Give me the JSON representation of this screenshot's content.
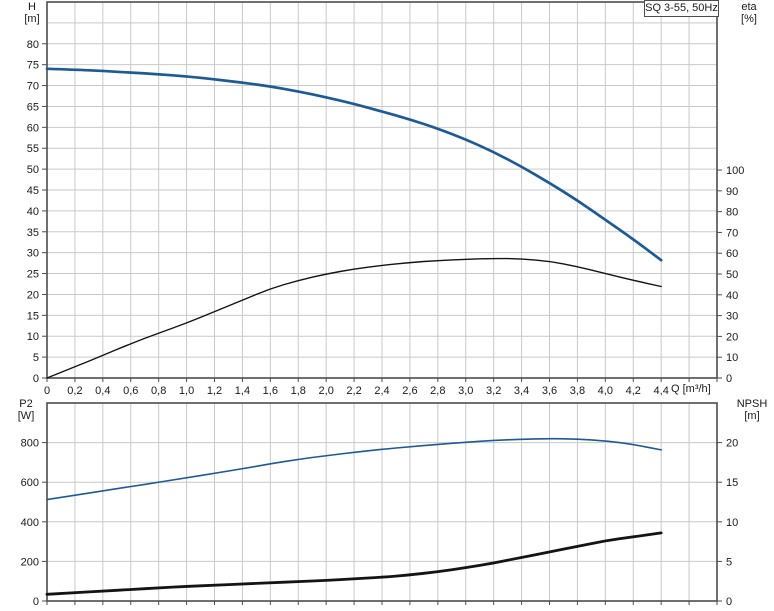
{
  "colors": {
    "blue_curve": "#1e5a96",
    "black_curve": "#141414",
    "grid": "#c9c9c9",
    "frame": "#4d4d4d",
    "text": "#1a1a1a",
    "background": "#ffffff"
  },
  "x_axis": {
    "grid_step": 0.2,
    "tick_values": [
      0,
      0.2,
      0.4,
      0.6,
      0.8,
      1.0,
      1.2,
      1.4,
      1.6,
      1.8,
      2.0,
      2.2,
      2.4,
      2.6,
      2.8,
      3.0,
      3.2,
      3.4,
      3.6,
      3.8,
      4.0,
      4.2,
      4.4
    ],
    "tick_labels": [
      "0",
      "0,2",
      "0,4",
      "0,6",
      "0,8",
      "1,0",
      "1,2",
      "1,4",
      "1,6",
      "1,8",
      "2,0",
      "2,2",
      "2,4",
      "2,6",
      "2,8",
      "3,0",
      "3,2",
      "3,4",
      "3,6",
      "3,8",
      "4,0",
      "4,2",
      "4,4"
    ]
  },
  "chart_data": [
    {
      "type": "line",
      "title": "SQ 3-55, 50Hz",
      "xlabel": "Q [m³/h]",
      "xlim": [
        0,
        4.8
      ],
      "grid": true,
      "left_axis": {
        "label_line1": "H",
        "label_line2": "[m]",
        "ylim": [
          0,
          90
        ],
        "tick_step": 5,
        "ticks": [
          0,
          5,
          10,
          15,
          20,
          25,
          30,
          35,
          40,
          45,
          50,
          55,
          60,
          65,
          70,
          75,
          80
        ]
      },
      "right_axis": {
        "label_line1": "eta",
        "label_line2": "[%]",
        "ylim": [
          0,
          180.8
        ],
        "ticks": [
          0,
          10,
          20,
          30,
          40,
          50,
          60,
          70,
          80,
          90,
          100
        ]
      },
      "series": [
        {
          "name": "H",
          "axis": "left",
          "color_key": "blue_curve",
          "stroke_width": 2.7,
          "x": [
            0,
            0.2,
            0.4,
            0.6,
            0.8,
            1.0,
            1.2,
            1.4,
            1.6,
            1.8,
            2.0,
            2.2,
            2.4,
            2.6,
            2.8,
            3.0,
            3.2,
            3.4,
            3.6,
            3.8,
            4.0,
            4.2,
            4.4
          ],
          "y": [
            74.0,
            73.8,
            73.5,
            73.1,
            72.7,
            72.2,
            71.5,
            70.7,
            69.8,
            68.6,
            67.2,
            65.6,
            63.8,
            61.9,
            59.7,
            57.1,
            54.1,
            50.6,
            46.7,
            42.5,
            37.9,
            33.2,
            28.2
          ]
        },
        {
          "name": "eta",
          "axis": "right",
          "color_key": "black_curve",
          "stroke_width": 1.4,
          "x": [
            0,
            0.2,
            0.4,
            0.6,
            0.8,
            1.0,
            1.2,
            1.4,
            1.6,
            1.8,
            2.0,
            2.2,
            2.4,
            2.6,
            2.8,
            3.0,
            3.2,
            3.4,
            3.6,
            3.8,
            4.0,
            4.2,
            4.4
          ],
          "y": [
            0,
            5.4,
            10.9,
            16.5,
            21.6,
            26.4,
            31.9,
            37.4,
            43.0,
            46.9,
            50.0,
            52.4,
            54.2,
            55.5,
            56.5,
            57.1,
            57.5,
            57.3,
            56.1,
            53.6,
            50.2,
            47.0,
            44.0
          ]
        }
      ]
    },
    {
      "type": "line",
      "title": "",
      "xlabel": "",
      "xlim": [
        0,
        4.8
      ],
      "grid": true,
      "left_axis": {
        "label_line1": "P2",
        "label_line2": "[W]",
        "ylim": [
          0,
          1000
        ],
        "tick_step": 200,
        "ticks": [
          0,
          200,
          400,
          600,
          800
        ]
      },
      "right_axis": {
        "label_line1": "NPSH",
        "label_line2": "[m]",
        "ylim": [
          0,
          25
        ],
        "ticks": [
          0,
          5,
          10,
          15,
          20
        ]
      },
      "series": [
        {
          "name": "P2",
          "axis": "left",
          "color_key": "blue_curve",
          "stroke_width": 1.6,
          "x": [
            0,
            0.2,
            0.4,
            0.6,
            0.8,
            1.0,
            1.2,
            1.4,
            1.6,
            1.8,
            2.0,
            2.2,
            2.4,
            2.6,
            2.8,
            3.0,
            3.2,
            3.4,
            3.6,
            3.8,
            4.0,
            4.2,
            4.4
          ],
          "y": [
            512,
            534,
            556,
            578,
            600,
            622,
            645,
            668,
            693,
            715,
            734,
            751,
            766,
            779,
            791,
            802,
            811,
            817,
            820,
            818,
            809,
            791,
            763
          ]
        },
        {
          "name": "NPSH",
          "axis": "right",
          "color_key": "black_curve",
          "stroke_width": 2.8,
          "x": [
            0,
            0.2,
            0.4,
            0.6,
            0.8,
            1.0,
            1.2,
            1.4,
            1.6,
            1.8,
            2.0,
            2.2,
            2.4,
            2.6,
            2.8,
            3.0,
            3.2,
            3.4,
            3.6,
            3.8,
            4.0,
            4.2,
            4.4
          ],
          "y": [
            0.85,
            1.05,
            1.25,
            1.45,
            1.65,
            1.85,
            2.0,
            2.15,
            2.3,
            2.45,
            2.6,
            2.8,
            3.0,
            3.3,
            3.7,
            4.2,
            4.8,
            5.5,
            6.2,
            6.9,
            7.6,
            8.1,
            8.6
          ]
        }
      ]
    }
  ]
}
